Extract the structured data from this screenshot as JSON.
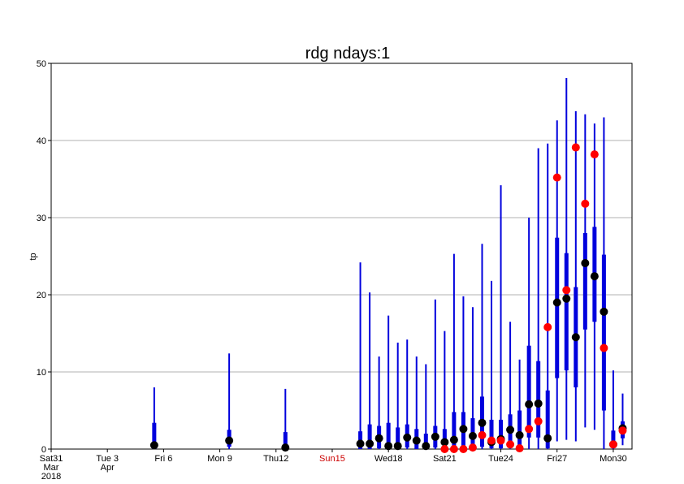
{
  "chart_data": {
    "type": "boxplot",
    "title": "rdg ndays:1",
    "ylabel": "tp",
    "ylim": [
      0,
      50
    ],
    "yticks": [
      0,
      10,
      20,
      30,
      40,
      50
    ],
    "grid": true,
    "xlim": [
      "2018-03-31",
      "2018-05-01"
    ],
    "xticks": [
      {
        "date": "2018-03-31",
        "lines": [
          "Sat31",
          "Mar",
          "2018"
        ],
        "color": "#000000"
      },
      {
        "date": "2018-04-03",
        "lines": [
          "Tue 3",
          "Apr"
        ],
        "color": "#000000"
      },
      {
        "date": "2018-04-06",
        "lines": [
          "Fri 6"
        ],
        "color": "#000000"
      },
      {
        "date": "2018-04-09",
        "lines": [
          "Mon 9"
        ],
        "color": "#000000"
      },
      {
        "date": "2018-04-12",
        "lines": [
          "Thu12"
        ],
        "color": "#000000"
      },
      {
        "date": "2018-04-15",
        "lines": [
          "Sun15"
        ],
        "color": "#cc0000"
      },
      {
        "date": "2018-04-18",
        "lines": [
          "Wed18"
        ],
        "color": "#000000"
      },
      {
        "date": "2018-04-21",
        "lines": [
          "Sat21"
        ],
        "color": "#000000"
      },
      {
        "date": "2018-04-24",
        "lines": [
          "Tue24"
        ],
        "color": "#000000"
      },
      {
        "date": "2018-04-27",
        "lines": [
          "Fri27"
        ],
        "color": "#000000"
      },
      {
        "date": "2018-04-30",
        "lines": [
          "Mon30"
        ],
        "color": "#000000"
      }
    ],
    "colors": {
      "box": "#0000dd",
      "median": "#000000",
      "observed": "#ff0000",
      "grid": "#999999"
    },
    "boxes": [
      {
        "date": "2018-04-05 12:00",
        "min": 0,
        "q1": 0,
        "q3": 3.4,
        "max": 8.0,
        "median": 0.5
      },
      {
        "date": "2018-04-09 12:00",
        "min": 0,
        "q1": 0.3,
        "q3": 2.5,
        "max": 12.4,
        "median": 1.1
      },
      {
        "date": "2018-04-12 12:00",
        "min": 0,
        "q1": 0,
        "q3": 2.2,
        "max": 7.8,
        "median": 0.2
      },
      {
        "date": "2018-04-16 12:00",
        "min": 0,
        "q1": 0,
        "q3": 2.3,
        "max": 24.2,
        "median": 0.7
      },
      {
        "date": "2018-04-17 00:00",
        "min": 0,
        "q1": 0,
        "q3": 3.2,
        "max": 20.3,
        "median": 0.7
      },
      {
        "date": "2018-04-17 12:00",
        "min": 0,
        "q1": 0.1,
        "q3": 3.0,
        "max": 12.0,
        "median": 1.4
      },
      {
        "date": "2018-04-18 00:00",
        "min": 0,
        "q1": 0,
        "q3": 3.4,
        "max": 17.3,
        "median": 0.4
      },
      {
        "date": "2018-04-18 12:00",
        "min": 0,
        "q1": 0,
        "q3": 2.8,
        "max": 13.8,
        "median": 0.4
      },
      {
        "date": "2018-04-19 00:00",
        "min": 0,
        "q1": 0.2,
        "q3": 3.2,
        "max": 14.2,
        "median": 1.5
      },
      {
        "date": "2018-04-19 12:00",
        "min": 0,
        "q1": 0,
        "q3": 2.6,
        "max": 12.0,
        "median": 1.1
      },
      {
        "date": "2018-04-20 00:00",
        "min": 0,
        "q1": 0,
        "q3": 2.0,
        "max": 11.0,
        "median": 0.4
      },
      {
        "date": "2018-04-20 12:00",
        "min": 0,
        "q1": 0.2,
        "q3": 3.0,
        "max": 19.4,
        "median": 1.6
      },
      {
        "date": "2018-04-21 00:00",
        "min": 0,
        "q1": 0,
        "q3": 2.6,
        "max": 15.3,
        "median": 0.9,
        "obs": 0.0
      },
      {
        "date": "2018-04-21 12:00",
        "min": 0,
        "q1": 0.1,
        "q3": 4.8,
        "max": 25.3,
        "median": 1.2,
        "obs": 0.0
      },
      {
        "date": "2018-04-22 00:00",
        "min": 0,
        "q1": 0.2,
        "q3": 4.8,
        "max": 19.8,
        "median": 2.6,
        "obs": 0.0
      },
      {
        "date": "2018-04-22 12:00",
        "min": 0,
        "q1": 0.1,
        "q3": 4.0,
        "max": 18.4,
        "median": 1.7,
        "obs": 0.2
      },
      {
        "date": "2018-04-23 00:00",
        "min": 0,
        "q1": 0.3,
        "q3": 6.8,
        "max": 26.6,
        "median": 3.4,
        "obs": 1.8
      },
      {
        "date": "2018-04-23 12:00",
        "min": 0,
        "q1": 0.1,
        "q3": 3.8,
        "max": 21.8,
        "median": 0.9,
        "obs": 1.1
      },
      {
        "date": "2018-04-24 00:00",
        "min": 0,
        "q1": 0.1,
        "q3": 3.8,
        "max": 34.2,
        "median": 1.3,
        "obs": 1.1
      },
      {
        "date": "2018-04-24 12:00",
        "min": 0,
        "q1": 0.4,
        "q3": 4.5,
        "max": 16.5,
        "median": 2.5,
        "obs": 0.6
      },
      {
        "date": "2018-04-25 00:00",
        "min": 0,
        "q1": 0.3,
        "q3": 5.0,
        "max": 11.6,
        "median": 1.8,
        "obs": 0.1
      },
      {
        "date": "2018-04-25 12:00",
        "min": 0,
        "q1": 1.5,
        "q3": 13.4,
        "max": 30.0,
        "median": 5.8,
        "obs": 2.6
      },
      {
        "date": "2018-04-26 00:00",
        "min": 0,
        "q1": 1.5,
        "q3": 11.4,
        "max": 39.0,
        "median": 5.9,
        "obs": 3.6
      },
      {
        "date": "2018-04-26 12:00",
        "min": 0,
        "q1": 0.1,
        "q3": 7.6,
        "max": 39.6,
        "median": 1.4,
        "obs": 15.8
      },
      {
        "date": "2018-04-27 00:00",
        "min": 1.0,
        "q1": 9.2,
        "q3": 27.4,
        "max": 42.6,
        "median": 19.0,
        "obs": 35.2
      },
      {
        "date": "2018-04-27 12:00",
        "min": 1.2,
        "q1": 10.2,
        "q3": 25.4,
        "max": 48.1,
        "median": 19.5,
        "obs": 20.6
      },
      {
        "date": "2018-04-28 00:00",
        "min": 1.0,
        "q1": 8.0,
        "q3": 21.0,
        "max": 43.8,
        "median": 14.5,
        "obs": 39.1
      },
      {
        "date": "2018-04-28 12:00",
        "min": 2.8,
        "q1": 15.5,
        "q3": 28.0,
        "max": 43.4,
        "median": 24.1,
        "obs": 31.8
      },
      {
        "date": "2018-04-29 00:00",
        "min": 2.5,
        "q1": 16.5,
        "q3": 28.8,
        "max": 42.2,
        "median": 22.4,
        "obs": 38.2
      },
      {
        "date": "2018-04-29 12:00",
        "min": 0,
        "q1": 5.0,
        "q3": 25.2,
        "max": 43.0,
        "median": 17.8,
        "obs": 13.1
      },
      {
        "date": "2018-04-30 00:00",
        "min": 0,
        "q1": 0.2,
        "q3": 2.4,
        "max": 10.2,
        "median": 0.6,
        "obs": 0.6
      },
      {
        "date": "2018-04-30 12:00",
        "min": 0.5,
        "q1": 1.4,
        "q3": 3.6,
        "max": 7.2,
        "median": 2.7,
        "obs": 2.4
      }
    ]
  }
}
